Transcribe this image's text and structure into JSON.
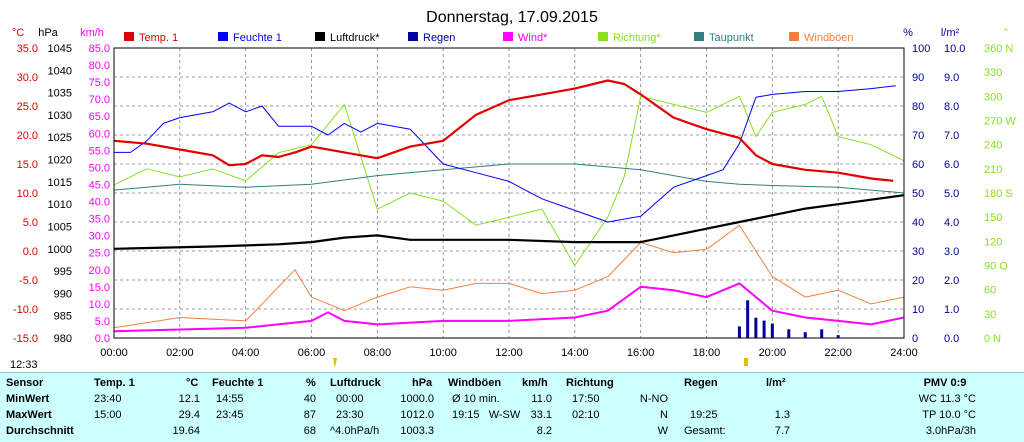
{
  "title": "Donnerstag, 17.09.2015",
  "colors": {
    "temp": "#e00000",
    "humidity": "#0000ff",
    "pressure": "#000000",
    "rain": "#0000a0",
    "wind": "#ff00ff",
    "direction": "#88e020",
    "dewpoint": "#308080",
    "gusts": "#f08040",
    "grid": "#808080",
    "table_bg": "#ccffff"
  },
  "axes": {
    "temp_unit": "°C",
    "pressure_unit": "hPa",
    "wind_unit": "km/h",
    "humidity_unit": "%",
    "rain_unit": "l/m²",
    "direction_unit": "°",
    "temp_ticks": [
      "35.0",
      "30.0",
      "25.0",
      "20.0",
      "15.0",
      "10.0",
      "5.0",
      "0.0",
      "-5.0",
      "-10.0",
      "-15.0"
    ],
    "pressure_ticks": [
      "1045",
      "1040",
      "1035",
      "1030",
      "1025",
      "1020",
      "1015",
      "1010",
      "1005",
      "1000",
      "995",
      "990",
      "985",
      "980"
    ],
    "wind_ticks": [
      "85.0",
      "80.0",
      "75.0",
      "70.0",
      "65.0",
      "60.0",
      "55.0",
      "50.0",
      "45.0",
      "40.0",
      "35.0",
      "30.0",
      "25.0",
      "20.0",
      "15.0",
      "10.0",
      "5.0",
      "0.0"
    ],
    "humidity_ticks": [
      "100",
      "90",
      "80",
      "70",
      "60",
      "50",
      "40",
      "30",
      "20",
      "10",
      "0"
    ],
    "rain_ticks": [
      "10.0",
      "9.0",
      "8.0",
      "7.0",
      "6.0",
      "5.0",
      "4.0",
      "3.0",
      "2.0",
      "1.0",
      "0.0"
    ],
    "direction_ticks": [
      "360 N",
      "330",
      "300",
      "270 W",
      "240",
      "210",
      "180 S",
      "150",
      "120",
      "90 O",
      "60",
      "30",
      "0 N"
    ],
    "x_ticks": [
      "00:00",
      "02:00",
      "04:00",
      "06:00",
      "08:00",
      "10:00",
      "12:00",
      "14:00",
      "16:00",
      "18:00",
      "20:00",
      "22:00",
      "24:00"
    ],
    "corner_time": "12:33"
  },
  "legend": [
    "Temp. 1",
    "Feuchte 1",
    "Luftdruck*",
    "Regen",
    "Wind*",
    "Richtung*",
    "Taupunkt",
    "Windböen"
  ],
  "chart_data": {
    "type": "line",
    "x_unit": "hours",
    "x_range": [
      0,
      24
    ],
    "series": [
      {
        "name": "Temp. 1",
        "axis": "temp",
        "range": [
          -15,
          35
        ],
        "points": [
          [
            0,
            19
          ],
          [
            1,
            18.5
          ],
          [
            2,
            17.5
          ],
          [
            3,
            16.5
          ],
          [
            3.5,
            14.8
          ],
          [
            4,
            15
          ],
          [
            4.5,
            16.5
          ],
          [
            5,
            16.2
          ],
          [
            5.5,
            17
          ],
          [
            6,
            18
          ],
          [
            7,
            17
          ],
          [
            8,
            16
          ],
          [
            9,
            18
          ],
          [
            10,
            19
          ],
          [
            11,
            23.5
          ],
          [
            12,
            26
          ],
          [
            13,
            27
          ],
          [
            14,
            28
          ],
          [
            15,
            29.4
          ],
          [
            15.5,
            28.8
          ],
          [
            16,
            27
          ],
          [
            17,
            23
          ],
          [
            18,
            21
          ],
          [
            19,
            19.5
          ],
          [
            19.5,
            16.5
          ],
          [
            20,
            15
          ],
          [
            21,
            14
          ],
          [
            22,
            13.5
          ],
          [
            23,
            12.5
          ],
          [
            23.67,
            12.1
          ]
        ]
      },
      {
        "name": "Feuchte 1",
        "axis": "humidity",
        "range": [
          0,
          100
        ],
        "points": [
          [
            0,
            64
          ],
          [
            0.5,
            64
          ],
          [
            1,
            68
          ],
          [
            1.5,
            74
          ],
          [
            2,
            76
          ],
          [
            3,
            78
          ],
          [
            3.5,
            81
          ],
          [
            4,
            78
          ],
          [
            4.5,
            80
          ],
          [
            5,
            73
          ],
          [
            6,
            73
          ],
          [
            6.5,
            70
          ],
          [
            7,
            74
          ],
          [
            7.5,
            71
          ],
          [
            8,
            74
          ],
          [
            9,
            72
          ],
          [
            9.5,
            66
          ],
          [
            10,
            60
          ],
          [
            11,
            57
          ],
          [
            12,
            54
          ],
          [
            13,
            48
          ],
          [
            14,
            44
          ],
          [
            15,
            40
          ],
          [
            16,
            42
          ],
          [
            17,
            52
          ],
          [
            18,
            56
          ],
          [
            18.5,
            58
          ],
          [
            19,
            67
          ],
          [
            19.5,
            83
          ],
          [
            20,
            84
          ],
          [
            21,
            85
          ],
          [
            22,
            85
          ],
          [
            23,
            86
          ],
          [
            23.75,
            87
          ]
        ]
      },
      {
        "name": "Luftdruck*",
        "axis": "pressure",
        "range": [
          980,
          1045
        ],
        "points": [
          [
            0,
            1000
          ],
          [
            3,
            1000.5
          ],
          [
            5,
            1001
          ],
          [
            6,
            1001.5
          ],
          [
            7,
            1002.5
          ],
          [
            8,
            1003
          ],
          [
            9,
            1002
          ],
          [
            12,
            1002
          ],
          [
            14,
            1001.5
          ],
          [
            16,
            1001.5
          ],
          [
            17,
            1003
          ],
          [
            18,
            1004.5
          ],
          [
            19,
            1006
          ],
          [
            20,
            1007.5
          ],
          [
            21,
            1009
          ],
          [
            22,
            1010
          ],
          [
            23,
            1011
          ],
          [
            24,
            1012
          ]
        ]
      },
      {
        "name": "Taupunkt",
        "axis": "temp",
        "range": [
          -15,
          35
        ],
        "points": [
          [
            0,
            10.5
          ],
          [
            2,
            11.5
          ],
          [
            4,
            11
          ],
          [
            6,
            11.5
          ],
          [
            8,
            13
          ],
          [
            10,
            14
          ],
          [
            12,
            15
          ],
          [
            14,
            15
          ],
          [
            15,
            14.5
          ],
          [
            16,
            14
          ],
          [
            17,
            13
          ],
          [
            18,
            12
          ],
          [
            19,
            11.5
          ],
          [
            20,
            11.3
          ],
          [
            22,
            11
          ],
          [
            24,
            10
          ]
        ]
      },
      {
        "name": "Richtung*",
        "axis": "direction",
        "range": [
          0,
          360
        ],
        "points": [
          [
            0,
            190
          ],
          [
            1,
            210
          ],
          [
            2,
            200
          ],
          [
            3,
            210
          ],
          [
            4,
            195
          ],
          [
            5,
            230
          ],
          [
            6,
            240
          ],
          [
            7,
            290
          ],
          [
            8,
            160
          ],
          [
            9,
            180
          ],
          [
            10,
            170
          ],
          [
            11,
            140
          ],
          [
            12,
            150
          ],
          [
            13,
            160
          ],
          [
            14,
            90
          ],
          [
            15,
            150
          ],
          [
            15.5,
            200
          ],
          [
            16,
            300
          ],
          [
            17,
            290
          ],
          [
            18,
            280
          ],
          [
            19,
            300
          ],
          [
            19.5,
            250
          ],
          [
            20,
            280
          ],
          [
            21,
            290
          ],
          [
            21.5,
            300
          ],
          [
            22,
            250
          ],
          [
            23,
            240
          ],
          [
            24,
            220
          ]
        ]
      },
      {
        "name": "Wind*",
        "axis": "wind",
        "range": [
          0,
          85
        ],
        "points": [
          [
            0,
            2
          ],
          [
            2,
            2.5
          ],
          [
            4,
            3
          ],
          [
            6,
            5
          ],
          [
            6.5,
            7.5
          ],
          [
            7,
            5
          ],
          [
            8,
            4
          ],
          [
            10,
            5
          ],
          [
            12,
            5
          ],
          [
            14,
            6
          ],
          [
            15,
            8
          ],
          [
            16,
            15
          ],
          [
            17,
            14
          ],
          [
            18,
            12
          ],
          [
            19,
            16
          ],
          [
            20,
            8
          ],
          [
            21,
            6
          ],
          [
            22,
            5
          ],
          [
            23,
            4
          ],
          [
            24,
            6
          ]
        ]
      },
      {
        "name": "Windböen",
        "axis": "wind",
        "range": [
          0,
          85
        ],
        "points": [
          [
            0,
            3
          ],
          [
            2,
            6
          ],
          [
            4,
            5
          ],
          [
            5.5,
            20
          ],
          [
            6,
            12
          ],
          [
            7,
            8
          ],
          [
            8,
            12
          ],
          [
            9,
            15
          ],
          [
            10,
            14
          ],
          [
            11,
            16
          ],
          [
            12,
            16
          ],
          [
            13,
            13
          ],
          [
            14,
            14
          ],
          [
            15,
            18
          ],
          [
            16,
            28
          ],
          [
            17,
            25
          ],
          [
            18,
            26
          ],
          [
            19,
            33
          ],
          [
            20,
            18
          ],
          [
            21,
            12
          ],
          [
            22,
            14
          ],
          [
            23,
            10
          ],
          [
            24,
            12
          ]
        ]
      },
      {
        "name": "Regen",
        "axis": "rain",
        "range": [
          0,
          10
        ],
        "points": [
          [
            19,
            0.4
          ],
          [
            19.25,
            1.3
          ],
          [
            19.5,
            0.7
          ],
          [
            19.75,
            0.6
          ],
          [
            20,
            0.5
          ],
          [
            20.5,
            0.3
          ],
          [
            21,
            0.2
          ],
          [
            21.5,
            0.3
          ],
          [
            22,
            0.1
          ]
        ]
      }
    ]
  },
  "table": {
    "headers": {
      "sensor": "Sensor",
      "temp": "Temp. 1",
      "temp_u": "°C",
      "hum": "Feuchte 1",
      "hum_u": "%",
      "press": "Luftdruck",
      "press_u": "hPa",
      "gust": "Windböen",
      "gust_u": "km/h",
      "dir": "Richtung",
      "rain": "Regen",
      "rain_u": "l/m²",
      "pmv": "PMV 0:9"
    },
    "row_labels": [
      "MinWert",
      "MaxWert",
      "Durchschnitt"
    ],
    "temp": [
      [
        "23:40",
        "12.1"
      ],
      [
        "15:00",
        "29.4"
      ],
      [
        "",
        "19.64"
      ]
    ],
    "hum": [
      [
        "14:55",
        "40"
      ],
      [
        "23:45",
        "87"
      ],
      [
        "",
        "68"
      ]
    ],
    "press": [
      [
        "00:00",
        "1000.0"
      ],
      [
        "23:30",
        "1012.0"
      ],
      [
        "^4.0hPa/h",
        "1003.3"
      ]
    ],
    "gust": [
      [
        "Ø 10 min.",
        "11.0"
      ],
      [
        "19:15   W-SW",
        "33.1"
      ],
      [
        "",
        "8.2"
      ]
    ],
    "dir": [
      [
        "17:50",
        "N-NO"
      ],
      [
        "02:10",
        "N"
      ],
      [
        "",
        "W"
      ]
    ],
    "rain": [
      [
        "",
        ""
      ],
      [
        "19:25",
        "1.3"
      ],
      [
        "Gesamt:",
        "7.7"
      ]
    ],
    "pmv": [
      "WC 11.3 °C",
      "TP 10.0 °C",
      "3.0hPa/3h"
    ]
  }
}
